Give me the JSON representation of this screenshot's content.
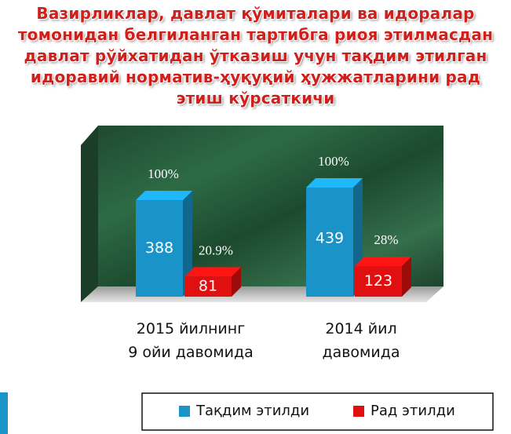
{
  "chart_data": {
    "type": "bar3d",
    "title": "Вазирликлар, давлат қўмиталари ва идоралар томонидан белгиланган тартибга риоя этилмасдан давлат рўйхатидан ўтказиш учун тақдим этилган идоравий норматив-ҳуқуқий ҳужжатларини рад этиш кўрсаткичи",
    "categories": [
      [
        "2015 йилнинг",
        "9 ойи давомида"
      ],
      [
        "2014 йил",
        "давомида"
      ]
    ],
    "series": [
      {
        "name": "Тақдим этилди",
        "color": "#1a93c9",
        "values": [
          388,
          439
        ],
        "annotations": [
          "100%",
          "100%"
        ]
      },
      {
        "name": "Рад этилди",
        "color": "#e01010",
        "values": [
          81,
          123
        ],
        "annotations": [
          "20.9%",
          "28%"
        ]
      }
    ],
    "legend": "bottom"
  }
}
